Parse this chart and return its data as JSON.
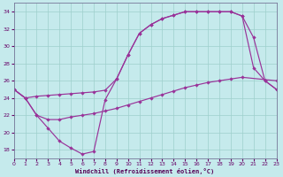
{
  "bg_color": "#c5eaec",
  "grid_color": "#9ecfcc",
  "line_color": "#993399",
  "xlim": [
    0,
    23
  ],
  "ylim": [
    17,
    35
  ],
  "yticks": [
    18,
    20,
    22,
    24,
    26,
    28,
    30,
    32,
    34
  ],
  "xticks": [
    0,
    1,
    2,
    3,
    4,
    5,
    6,
    7,
    8,
    9,
    10,
    11,
    12,
    13,
    14,
    15,
    16,
    17,
    18,
    19,
    20,
    21,
    22,
    23
  ],
  "xlabel": "Windchill (Refroidissement éolien,°C)",
  "line1_x": [
    0,
    1,
    2,
    3,
    4,
    5,
    6,
    7,
    8,
    9,
    10,
    11,
    12,
    13,
    14,
    15,
    16,
    17,
    18,
    19,
    20,
    21,
    22,
    23
  ],
  "line1_y": [
    25.0,
    24.0,
    24.2,
    24.3,
    24.4,
    24.5,
    24.6,
    24.7,
    24.9,
    26.2,
    29.0,
    31.5,
    32.5,
    33.2,
    33.6,
    34.0,
    34.0,
    34.0,
    34.0,
    34.0,
    33.5,
    31.0,
    26.0,
    25.0
  ],
  "line2_x": [
    0,
    1,
    2,
    3,
    4,
    5,
    6,
    7,
    8,
    9,
    10,
    11,
    12,
    13,
    14,
    15,
    16,
    17,
    18,
    19,
    20,
    21,
    22,
    23
  ],
  "line2_y": [
    25.0,
    24.0,
    22.0,
    20.5,
    19.0,
    18.2,
    17.5,
    17.8,
    23.8,
    26.2,
    29.0,
    31.5,
    32.5,
    33.2,
    33.6,
    34.0,
    34.0,
    34.0,
    34.0,
    34.0,
    33.5,
    27.5,
    26.0,
    25.0
  ],
  "line3_x": [
    0,
    1,
    2,
    3,
    4,
    5,
    6,
    7,
    8,
    9,
    10,
    11,
    12,
    13,
    14,
    15,
    16,
    17,
    18,
    19,
    20,
    23
  ],
  "line3_y": [
    25.0,
    24.0,
    22.0,
    21.5,
    21.5,
    21.8,
    22.0,
    22.2,
    22.5,
    22.8,
    23.2,
    23.6,
    24.0,
    24.4,
    24.8,
    25.2,
    25.5,
    25.8,
    26.0,
    26.2,
    26.4,
    26.0
  ]
}
